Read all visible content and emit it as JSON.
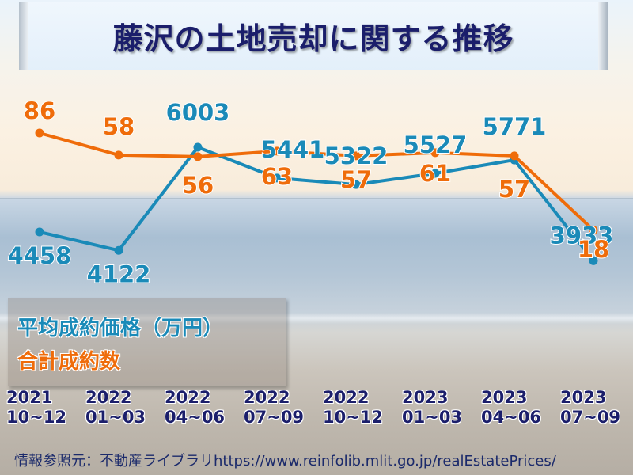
{
  "title": "藤沢の土地売却に関する推移",
  "legend": {
    "price_label": "平均成約価格（万円）",
    "count_label": "合計成約数"
  },
  "colors": {
    "price": "#1a8ab8",
    "count": "#ef6c0a",
    "title": "#1b1e6b",
    "axis_text": "#1b1e6b"
  },
  "x_ticks": [
    {
      "year": "2021",
      "months": "10~12"
    },
    {
      "year": "2022",
      "months": "01~03"
    },
    {
      "year": "2022",
      "months": "04~06"
    },
    {
      "year": "2022",
      "months": "07~09"
    },
    {
      "year": "2022",
      "months": "10~12"
    },
    {
      "year": "2023",
      "months": "01~03"
    },
    {
      "year": "2023",
      "months": "04~06"
    },
    {
      "year": "2023",
      "months": "07~09"
    }
  ],
  "source": "情報参照元：不動産ライブラリhttps://www.reinfolib.mlit.go.jp/realEstatePrices/",
  "chart_data": {
    "type": "line",
    "title": "藤沢の土地売却に関する推移",
    "categories": [
      "2021 10~12",
      "2022 01~03",
      "2022 04~06",
      "2022 07~09",
      "2022 10~12",
      "2023 01~03",
      "2023 04~06",
      "2023 07~09"
    ],
    "series": [
      {
        "name": "平均成約価格（万円）",
        "color": "#1a8ab8",
        "values": [
          4458,
          4122,
          6003,
          5441,
          5322,
          5527,
          5771,
          3933
        ]
      },
      {
        "name": "合計成約数",
        "color": "#ef6c0a",
        "values": [
          86,
          58,
          56,
          63,
          57,
          61,
          57,
          18
        ]
      }
    ],
    "xlabel": "",
    "ylabel": "",
    "grid": false,
    "legend_position": "lower-left",
    "data_labels": true
  }
}
